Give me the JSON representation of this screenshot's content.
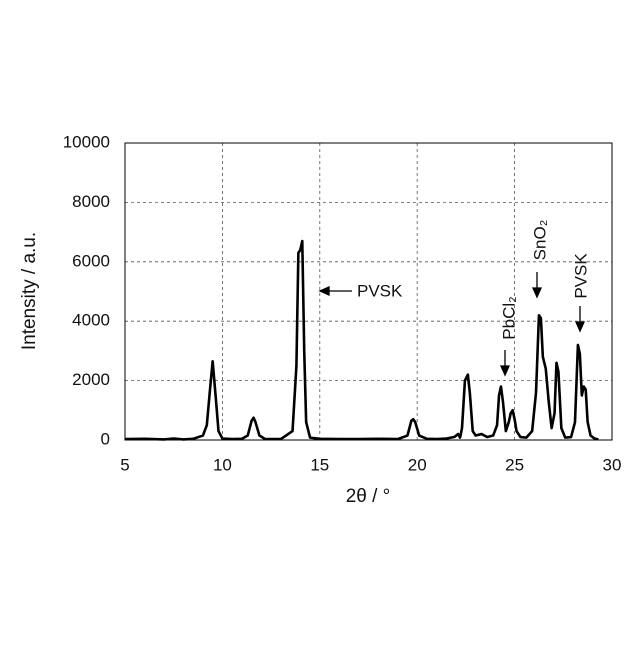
{
  "chart_data": {
    "type": "line",
    "x_label": "2θ / °",
    "y_label": "Intensity / a.u.",
    "x": [
      5,
      6,
      7,
      7.5,
      8,
      8.5,
      9,
      9.2,
      9.35,
      9.5,
      9.65,
      9.8,
      10,
      10.5,
      11,
      11.3,
      11.5,
      11.6,
      11.7,
      11.9,
      12.2,
      13,
      13.6,
      13.8,
      13.9,
      14.0,
      14.1,
      14.2,
      14.3,
      14.5,
      15,
      16,
      17,
      18,
      19,
      19.5,
      19.7,
      19.8,
      19.9,
      20.1,
      20.5,
      21,
      21.5,
      21.9,
      22.1,
      22.2,
      22.3,
      22.45,
      22.6,
      22.7,
      22.85,
      23,
      23.3,
      23.6,
      23.9,
      24.1,
      24.2,
      24.3,
      24.4,
      24.55,
      24.7,
      24.8,
      24.9,
      25,
      25.1,
      25.3,
      25.6,
      25.9,
      26.1,
      26.25,
      26.35,
      26.45,
      26.6,
      26.75,
      26.9,
      27.05,
      27.15,
      27.25,
      27.4,
      27.6,
      27.9,
      28.1,
      28.25,
      28.35,
      28.45,
      28.55,
      28.65,
      28.75,
      28.9,
      29.1,
      29.3
    ],
    "series": [
      {
        "color": "#000000",
        "values": [
          30,
          40,
          20,
          50,
          20,
          40,
          150,
          500,
          1600,
          2650,
          1500,
          300,
          50,
          30,
          40,
          150,
          650,
          750,
          600,
          150,
          30,
          30,
          300,
          2500,
          6300,
          6400,
          6700,
          3000,
          600,
          80,
          40,
          30,
          30,
          40,
          30,
          150,
          650,
          700,
          600,
          150,
          40,
          30,
          50,
          100,
          200,
          80,
          400,
          2000,
          2200,
          1600,
          300,
          150,
          200,
          100,
          150,
          500,
          1500,
          1800,
          1300,
          300,
          600,
          900,
          1000,
          700,
          300,
          100,
          80,
          300,
          1600,
          4200,
          4100,
          2800,
          2400,
          1300,
          400,
          900,
          2600,
          2300,
          400,
          80,
          100,
          600,
          3200,
          2900,
          1500,
          1800,
          1700,
          600,
          150,
          50,
          20
        ]
      }
    ],
    "xlim": [
      5,
      30
    ],
    "xticks": [
      5,
      10,
      15,
      20,
      25,
      30
    ],
    "ylim": [
      0,
      10000
    ],
    "yticks": [
      0,
      2000,
      4000,
      6000,
      8000,
      10000
    ],
    "grid": true,
    "annotations": [
      "PVSK",
      "PbCl₂",
      "SnO₂",
      "PVSK"
    ]
  }
}
